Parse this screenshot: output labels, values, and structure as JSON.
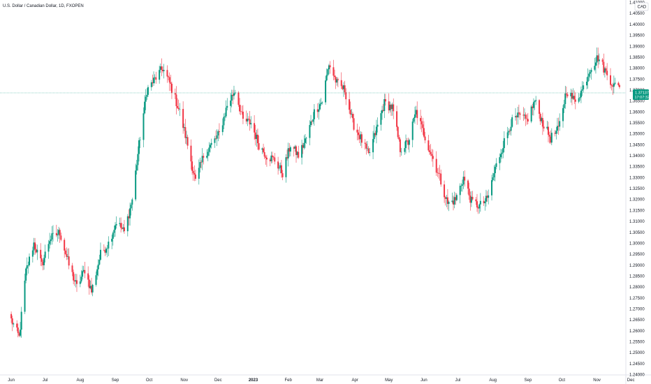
{
  "header": {
    "symbol_title": "U.S. Dollar / Canadian Dollar, 1D, FXOPEN"
  },
  "price_axis": {
    "currency": "CAD"
  },
  "price_badge": {
    "price": "1.37137",
    "countdown": "17:07:32"
  },
  "colors": {
    "up": "#089981",
    "down": "#f23645",
    "wick": "#6b6b6b",
    "last_price_line": "#089981"
  },
  "chart_data": {
    "type": "candlestick",
    "title": "U.S. Dollar / Canadian Dollar, 1D, FXOPEN",
    "ylim": [
      1.2405,
      1.4105
    ],
    "y_ticks": [
      "1.41000",
      "1.40500",
      "1.40000",
      "1.39500",
      "1.39000",
      "1.38500",
      "1.38000",
      "1.37500",
      "1.37000",
      "1.36500",
      "1.36000",
      "1.35500",
      "1.35000",
      "1.34500",
      "1.34000",
      "1.33500",
      "1.33000",
      "1.32500",
      "1.32000",
      "1.31500",
      "1.31000",
      "1.30500",
      "1.30000",
      "1.29500",
      "1.29000",
      "1.28500",
      "1.28000",
      "1.27500",
      "1.27000",
      "1.26500",
      "1.26000",
      "1.25500",
      "1.25000",
      "1.24500",
      "1.24000"
    ],
    "x_labels": [
      "Jun",
      "Jul",
      "Aug",
      "Sep",
      "Oct",
      "Nov",
      "Dec",
      "2023",
      "Feb",
      "Mar",
      "Apr",
      "May",
      "Jun",
      "Jul",
      "Aug",
      "Sep",
      "Oct",
      "Nov",
      "Dec"
    ],
    "last_price": 1.37137,
    "anchors": [
      [
        "2022-06-01",
        1.265
      ],
      [
        "2022-06-08",
        1.257
      ],
      [
        "2022-06-14",
        1.287
      ],
      [
        "2022-06-21",
        1.3
      ],
      [
        "2022-06-28",
        1.29
      ],
      [
        "2022-07-05",
        1.302
      ],
      [
        "2022-07-14",
        1.305
      ],
      [
        "2022-07-22",
        1.29
      ],
      [
        "2022-07-29",
        1.28
      ],
      [
        "2022-08-05",
        1.288
      ],
      [
        "2022-08-11",
        1.278
      ],
      [
        "2022-08-19",
        1.295
      ],
      [
        "2022-08-26",
        1.3
      ],
      [
        "2022-09-02",
        1.31
      ],
      [
        "2022-09-09",
        1.305
      ],
      [
        "2022-09-16",
        1.32
      ],
      [
        "2022-09-22",
        1.345
      ],
      [
        "2022-09-29",
        1.37
      ],
      [
        "2022-10-06",
        1.375
      ],
      [
        "2022-10-13",
        1.38
      ],
      [
        "2022-10-20",
        1.372
      ],
      [
        "2022-10-28",
        1.36
      ],
      [
        "2022-11-04",
        1.345
      ],
      [
        "2022-11-11",
        1.328
      ],
      [
        "2022-11-18",
        1.34
      ],
      [
        "2022-11-25",
        1.345
      ],
      [
        "2022-12-02",
        1.35
      ],
      [
        "2022-12-09",
        1.363
      ],
      [
        "2022-12-16",
        1.37
      ],
      [
        "2022-12-23",
        1.356
      ],
      [
        "2022-12-30",
        1.355
      ],
      [
        "2023-01-06",
        1.345
      ],
      [
        "2023-01-13",
        1.34
      ],
      [
        "2023-01-20",
        1.338
      ],
      [
        "2023-01-27",
        1.332
      ],
      [
        "2023-02-03",
        1.345
      ],
      [
        "2023-02-10",
        1.34
      ],
      [
        "2023-02-17",
        1.348
      ],
      [
        "2023-02-24",
        1.36
      ],
      [
        "2023-03-03",
        1.365
      ],
      [
        "2023-03-09",
        1.382
      ],
      [
        "2023-03-16",
        1.373
      ],
      [
        "2023-03-23",
        1.37
      ],
      [
        "2023-03-30",
        1.355
      ],
      [
        "2023-04-06",
        1.348
      ],
      [
        "2023-04-13",
        1.34
      ],
      [
        "2023-04-20",
        1.352
      ],
      [
        "2023-04-27",
        1.364
      ],
      [
        "2023-05-04",
        1.362
      ],
      [
        "2023-05-11",
        1.343
      ],
      [
        "2023-05-18",
        1.346
      ],
      [
        "2023-05-25",
        1.36
      ],
      [
        "2023-06-01",
        1.35
      ],
      [
        "2023-06-08",
        1.34
      ],
      [
        "2023-06-15",
        1.33
      ],
      [
        "2023-06-22",
        1.318
      ],
      [
        "2023-06-29",
        1.32
      ],
      [
        "2023-07-06",
        1.33
      ],
      [
        "2023-07-13",
        1.319
      ],
      [
        "2023-07-20",
        1.317
      ],
      [
        "2023-07-27",
        1.32
      ],
      [
        "2023-08-03",
        1.334
      ],
      [
        "2023-08-10",
        1.345
      ],
      [
        "2023-08-17",
        1.355
      ],
      [
        "2023-08-24",
        1.358
      ],
      [
        "2023-08-31",
        1.356
      ],
      [
        "2023-09-07",
        1.365
      ],
      [
        "2023-09-14",
        1.355
      ],
      [
        "2023-09-21",
        1.348
      ],
      [
        "2023-09-28",
        1.352
      ],
      [
        "2023-10-05",
        1.37
      ],
      [
        "2023-10-12",
        1.365
      ],
      [
        "2023-10-19",
        1.37
      ],
      [
        "2023-10-26",
        1.38
      ],
      [
        "2023-11-02",
        1.385
      ],
      [
        "2023-11-09",
        1.378
      ],
      [
        "2023-11-16",
        1.372
      ],
      [
        "2023-11-21",
        1.3714
      ]
    ]
  }
}
